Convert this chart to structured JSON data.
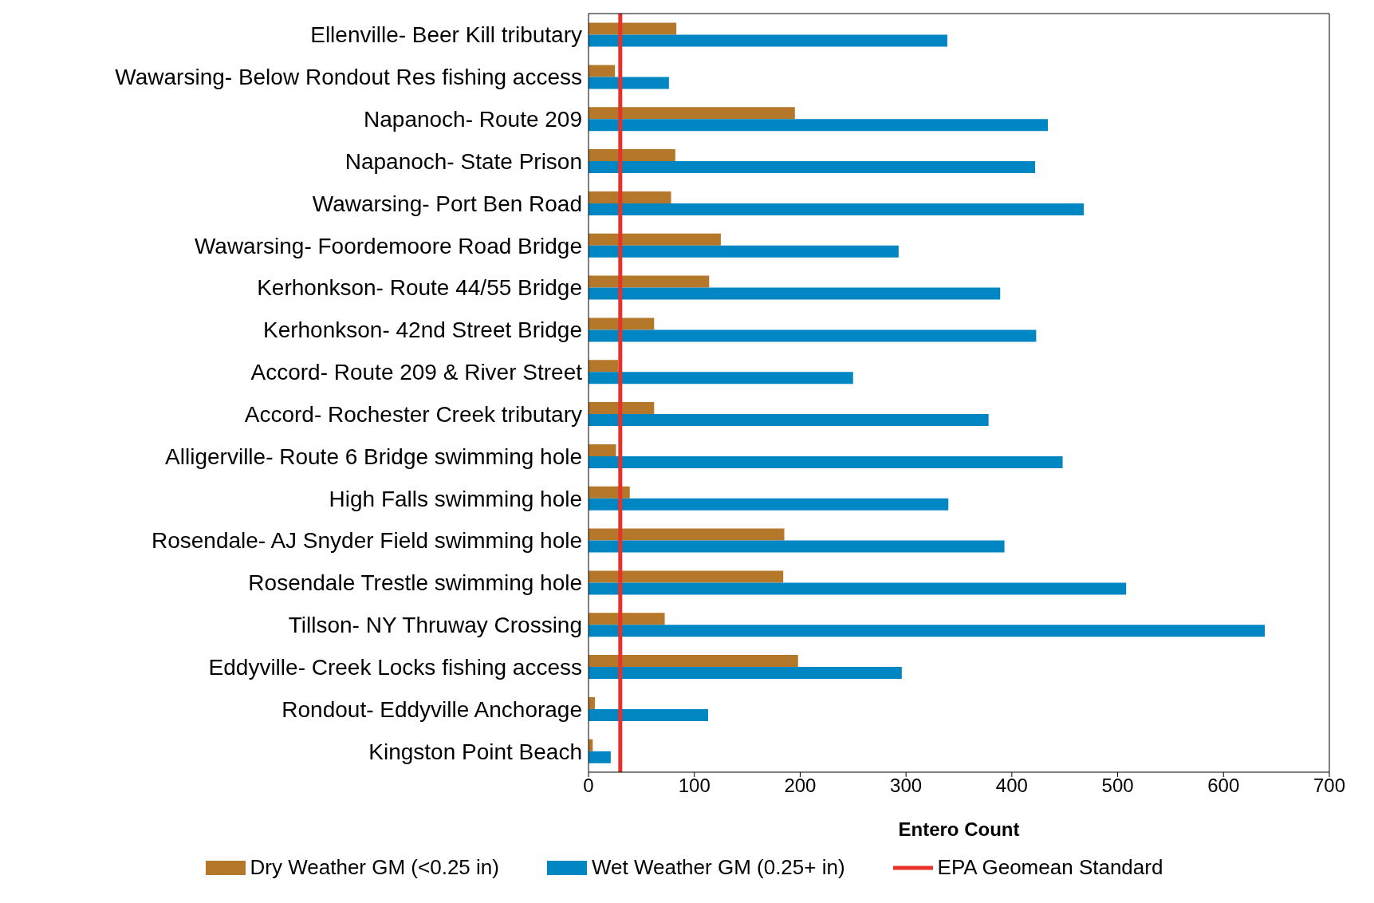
{
  "chart_data": {
    "type": "bar",
    "orientation": "horizontal",
    "xlabel": "Entero Count",
    "categories": [
      "Ellenville- Beer Kill tributary",
      "Wawarsing- Below Rondout Res fishing access",
      "Napanoch- Route 209",
      "Napanoch- State Prison",
      "Wawarsing- Port Ben Road",
      "Wawarsing- Foordemoore Road Bridge",
      "Kerhonkson- Route 44/55 Bridge",
      "Kerhonkson- 42nd Street Bridge",
      "Accord- Route 209 & River Street",
      "Accord- Rochester Creek tributary",
      "Alligerville- Route 6 Bridge swimming hole",
      "High Falls swimming hole",
      "Rosendale- AJ Snyder Field swimming hole",
      "Rosendale Trestle swimming hole",
      "Tillson- NY Thruway Crossing",
      "Eddyville- Creek Locks fishing access",
      "Rondout- Eddyville Anchorage",
      "Kingston Point Beach"
    ],
    "series": [
      {
        "name": "Dry Weather GM (<0.25 in)",
        "color": "#b5772a",
        "values": [
          83,
          25,
          195,
          82,
          78,
          125,
          114,
          62,
          28,
          62,
          26,
          39,
          185,
          184,
          72,
          198,
          6,
          4
        ]
      },
      {
        "name": "Wet Weather GM (0.25+ in)",
        "color": "#0086c3",
        "values": [
          339,
          76,
          434,
          422,
          468,
          293,
          389,
          423,
          250,
          378,
          448,
          340,
          393,
          508,
          639,
          296,
          113,
          21
        ]
      }
    ],
    "xlim": [
      0,
      700
    ],
    "xticks": [
      0,
      100,
      200,
      300,
      400,
      500,
      600,
      700
    ],
    "ref_lines": [
      {
        "axis": "x",
        "value": 30,
        "label": "EPA Geomean Standard",
        "color": "#e8312a"
      }
    ],
    "grid": false,
    "legend": "bottom"
  }
}
